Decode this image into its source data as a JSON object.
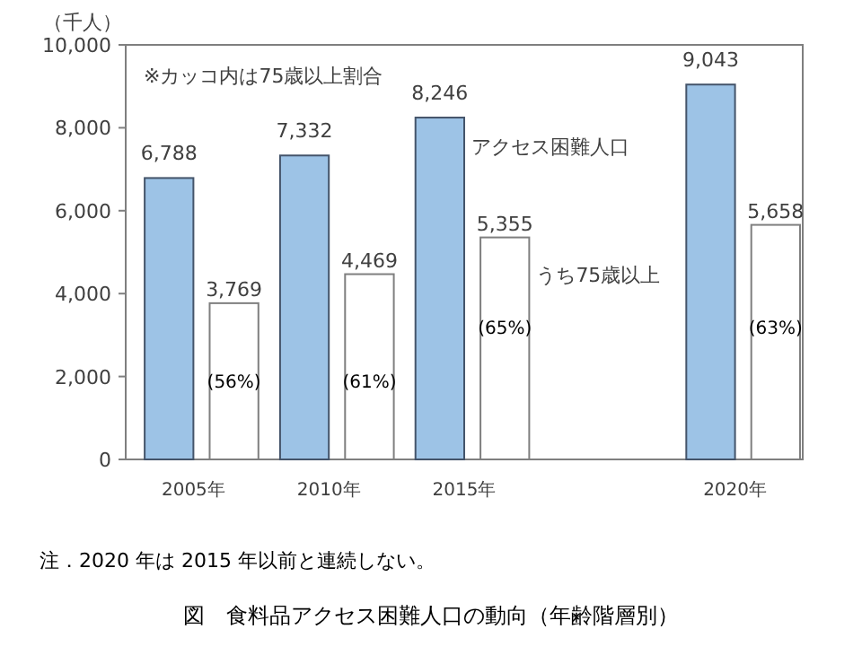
{
  "chart_data": {
    "type": "bar",
    "ylabel": "（千人）",
    "title": "図　食料品アクセス困難人口の動向（年齢階層別）",
    "categories": [
      "2005年",
      "2010年",
      "2015年",
      null,
      "2020年"
    ],
    "series": [
      {
        "name": "アクセス困難人口",
        "color": "#9dc3e6",
        "values": [
          6788,
          7332,
          8246,
          null,
          9043
        ],
        "value_labels": [
          "6,788",
          "7,332",
          "8,246",
          null,
          "9,043"
        ]
      },
      {
        "name": "うち75歳以上",
        "color": "#ffffff",
        "values": [
          3769,
          4469,
          5355,
          null,
          5658
        ],
        "value_labels": [
          "3,769",
          "4,469",
          "5,355",
          null,
          "5,658"
        ]
      }
    ],
    "ylim": [
      0,
      10000
    ],
    "yticks": [
      0,
      {
        "value": 2000,
        "label": "2,000"
      },
      {
        "value": 4000,
        "label": "4,000"
      },
      {
        "value": 6000,
        "label": "6,000"
      },
      {
        "value": 8000,
        "label": "8,000"
      },
      {
        "value": 10000,
        "label": "10,000"
      }
    ],
    "grid": false,
    "annotations": [
      "※カッコ内は75歳以上割合",
      {
        "text": "(56%)",
        "x": "2005年",
        "y": 1900
      },
      {
        "text": "(61%)",
        "x": "2010年",
        "y": 1900
      },
      {
        "text": "(65%)",
        "x": "2015年",
        "y": 3200
      },
      {
        "text": "(63%)",
        "x": "2020年",
        "y": 3200
      },
      "注．2020 年は 2015 年以前と連続しない。"
    ]
  }
}
